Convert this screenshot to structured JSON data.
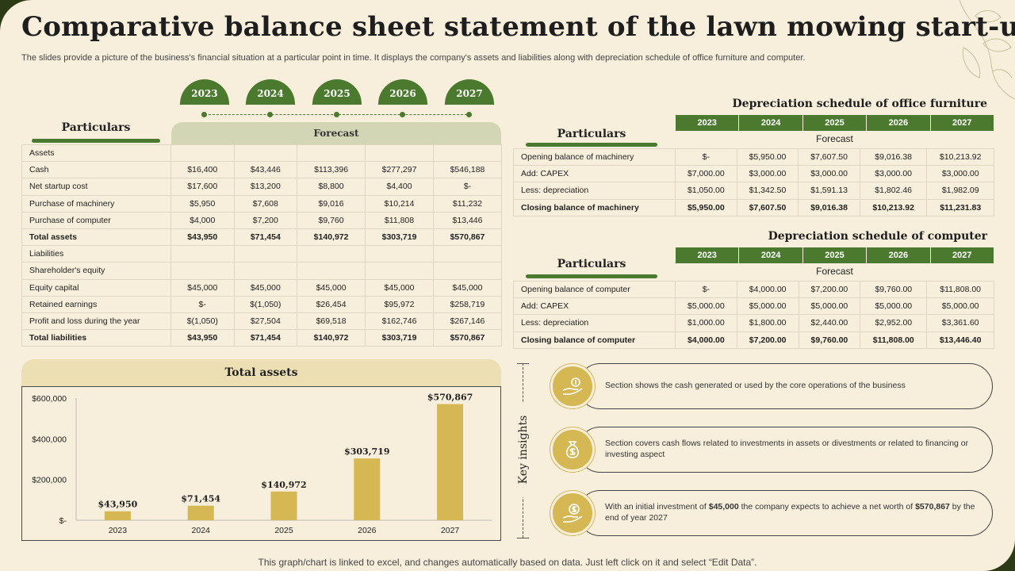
{
  "title": "Comparative balance sheet statement of the lawn mowing start-up",
  "subtitle": "The slides provide a picture of the business's financial situation at a particular point in time. It displays the company's assets and liabilities along with depreciation schedule of office furniture and computer.",
  "years": [
    "2023",
    "2024",
    "2025",
    "2026",
    "2027"
  ],
  "left_table": {
    "particulars_label": "Particulars",
    "forecast_label": "Forecast",
    "rows": [
      {
        "label": "Assets",
        "values": [
          "",
          "",
          "",
          "",
          ""
        ]
      },
      {
        "label": "Cash",
        "values": [
          "$16,400",
          "$43,446",
          "$113,396",
          "$277,297",
          "$546,188"
        ]
      },
      {
        "label": "Net startup cost",
        "values": [
          "$17,600",
          "$13,200",
          "$8,800",
          "$4,400",
          "$-"
        ]
      },
      {
        "label": "Purchase of machinery",
        "values": [
          "$5,950",
          "$7,608",
          "$9,016",
          "$10,214",
          "$11,232"
        ]
      },
      {
        "label": "Purchase of computer",
        "values": [
          "$4,000",
          "$7,200",
          "$9,760",
          "$11,808",
          "$13,446"
        ]
      },
      {
        "label": "Total assets",
        "values": [
          "$43,950",
          "$71,454",
          "$140,972",
          "$303,719",
          "$570,867"
        ],
        "bold": true
      },
      {
        "label": "Liabilities",
        "values": [
          "",
          "",
          "",
          "",
          ""
        ]
      },
      {
        "label": "Shareholder's equity",
        "values": [
          "",
          "",
          "",
          "",
          ""
        ]
      },
      {
        "label": "Equity capital",
        "values": [
          "$45,000",
          "$45,000",
          "$45,000",
          "$45,000",
          "$45,000"
        ]
      },
      {
        "label": "Retained earnings",
        "values": [
          "$-",
          "$(1,050)",
          "$26,454",
          "$95,972",
          "$258,719"
        ]
      },
      {
        "label": "Profit and loss during the year",
        "values": [
          "$(1,050)",
          "$27,504",
          "$69,518",
          "$162,746",
          "$267,146"
        ]
      },
      {
        "label": "Total liabilities",
        "values": [
          "$43,950",
          "$71,454",
          "$140,972",
          "$303,719",
          "$570,867"
        ],
        "bold": true
      }
    ]
  },
  "furniture_table": {
    "title": "Depreciation schedule of office furniture",
    "particulars_label": "Particulars",
    "forecast_label": "Forecast",
    "rows": [
      {
        "label": "Opening balance of machinery",
        "values": [
          "$-",
          "$5,950.00",
          "$7,607.50",
          "$9,016.38",
          "$10,213.92"
        ]
      },
      {
        "label": "Add: CAPEX",
        "values": [
          "$7,000.00",
          "$3,000.00",
          "$3,000.00",
          "$3,000.00",
          "$3,000.00"
        ]
      },
      {
        "label": "Less: depreciation",
        "values": [
          "$1,050.00",
          "$1,342.50",
          "$1,591.13",
          "$1,802.46",
          "$1,982.09"
        ]
      },
      {
        "label": "Closing balance of machinery",
        "values": [
          "$5,950.00",
          "$7,607.50",
          "$9,016.38",
          "$10,213.92",
          "$11,231.83"
        ],
        "bold": true
      }
    ]
  },
  "computer_table": {
    "title": "Depreciation schedule of computer",
    "particulars_label": "Particulars",
    "forecast_label": "Forecast",
    "rows": [
      {
        "label": "Opening balance of computer",
        "values": [
          "$-",
          "$4,000.00",
          "$7,200.00",
          "$9,760.00",
          "$11,808.00"
        ]
      },
      {
        "label": "Add: CAPEX",
        "values": [
          "$5,000.00",
          "$5,000.00",
          "$5,000.00",
          "$5,000.00",
          "$5,000.00"
        ]
      },
      {
        "label": "Less: depreciation",
        "values": [
          "$1,000.00",
          "$1,800.00",
          "$2,440.00",
          "$2,952.00",
          "$3,361.60"
        ]
      },
      {
        "label": "Closing balance of computer",
        "values": [
          "$4,000.00",
          "$7,200.00",
          "$9,760.00",
          "$11,808.00",
          "$13,446.40"
        ],
        "bold": true
      }
    ]
  },
  "chart_data": {
    "type": "bar",
    "title": "Total assets",
    "categories": [
      "2023",
      "2024",
      "2025",
      "2026",
      "2027"
    ],
    "values": [
      43950,
      71454,
      140972,
      303719,
      570867
    ],
    "data_labels": [
      "$43,950",
      "$71,454",
      "$140,972",
      "$303,719",
      "$570,867"
    ],
    "y_ticks": [
      0,
      200000,
      400000,
      600000
    ],
    "y_tick_labels": [
      "$-",
      "$200,000",
      "$400,000",
      "$600,000"
    ],
    "ylim": [
      0,
      600000
    ],
    "bar_color": "#d5b754",
    "grid": false,
    "legend": "none"
  },
  "key_insights": {
    "label": "Key insights",
    "items": [
      {
        "icon": "hand-money-icon",
        "text": "Section shows the cash generated or used by the core operations of the business"
      },
      {
        "icon": "money-bag-icon",
        "text": "Section covers cash flows related to investments in assets or divestments or related to financing or investing aspect"
      },
      {
        "icon": "hand-dollar-icon",
        "text_before": "With an initial investment of ",
        "bold1": "$45,000",
        "text_middle": " the company expects to achieve a net worth of ",
        "bold2": "$570,867",
        "text_after": " by the end of year 2027"
      }
    ]
  },
  "footer": "This graph/chart is linked to excel, and changes automatically based on data.  Just left click on it and select “Edit Data”.",
  "colors": {
    "green": "#4b7a2f",
    "gold": "#d5b754",
    "background": "#f7efdc",
    "forecast_band": "#d2d6b4"
  }
}
